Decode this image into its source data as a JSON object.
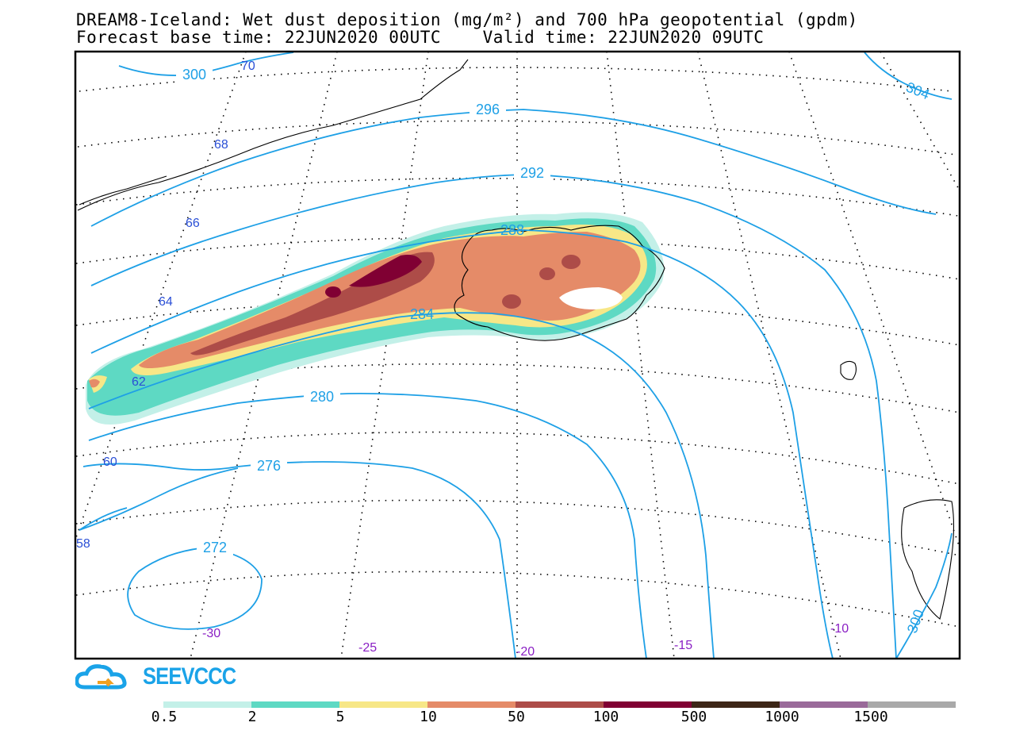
{
  "title": {
    "line1": "DREAM8-Iceland: Wet dust deposition (mg/m²) and 700 hPa geopotential (gpdm)",
    "line2": "Forecast base time: 22JUN2020 00UTC    Valid time: 22JUN2020 09UTC"
  },
  "logo": {
    "text": "SEEVCCC",
    "color": "#1aa3e8",
    "icon": "cloud-arrow-icon"
  },
  "colors": {
    "contour": "#1ea0e6",
    "lat_label": "#2a4fd6",
    "lon_label": "#8a1fc4",
    "coast": "#000000"
  },
  "contour_labels": [
    "300",
    "296",
    "292",
    "288",
    "284",
    "280",
    "276",
    "272",
    "304",
    "300"
  ],
  "lat_labels": [
    "70",
    "68",
    "66",
    "64",
    "62",
    "60",
    "58"
  ],
  "lon_labels": [
    "-30",
    "-25",
    "-20",
    "-15",
    "-10"
  ],
  "colorbar": {
    "colors": [
      "#c3f0e8",
      "#5ed9c3",
      "#f7e787",
      "#e58b68",
      "#ad4c48",
      "#800033",
      "#3d2617",
      "#9a6a9a",
      "#a9a9a9"
    ],
    "labels": [
      "0.5",
      "2",
      "5",
      "10",
      "50",
      "100",
      "500",
      "1000",
      "1500"
    ]
  }
}
